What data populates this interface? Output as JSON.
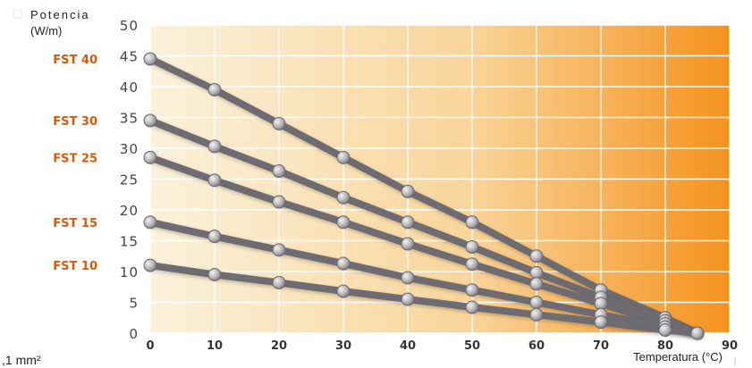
{
  "chart_data": {
    "type": "line",
    "ylabel_line1": "Potencia",
    "ylabel_line2": "(W/m)",
    "xlabel": "Temperatura (°C)",
    "footnote": ",1 mm²",
    "xlim": [
      0,
      90
    ],
    "ylim": [
      0,
      50
    ],
    "x_ticks": [
      "0",
      "10",
      "20",
      "30",
      "40",
      "50",
      "60",
      "70",
      "80",
      "90"
    ],
    "y_ticks": [
      "0",
      "5",
      "10",
      "15",
      "20",
      "25",
      "30",
      "35",
      "40",
      "45",
      "50"
    ],
    "grid": true,
    "colors": {
      "gradient_start": "#fbf2dc",
      "gradient_end": "#f5921e",
      "line": "#6e6c6f",
      "marker": "#b0aeb2",
      "label": "#d55a0c"
    },
    "series": [
      {
        "name": "FST 40",
        "x": [
          0,
          10,
          20,
          30,
          40,
          50,
          60,
          70,
          80,
          85
        ],
        "y": [
          44.5,
          39.5,
          34,
          28.5,
          23,
          18,
          12.5,
          7,
          2.5,
          0
        ]
      },
      {
        "name": "FST 30",
        "x": [
          0,
          10,
          20,
          30,
          40,
          50,
          60,
          70,
          80,
          85
        ],
        "y": [
          34.5,
          30.3,
          26.3,
          22,
          18,
          14,
          9.8,
          5.8,
          2,
          0
        ]
      },
      {
        "name": "FST 25",
        "x": [
          0,
          10,
          20,
          30,
          40,
          50,
          60,
          70,
          80,
          85
        ],
        "y": [
          28.5,
          24.8,
          21.3,
          18,
          14.5,
          11.2,
          8,
          4.8,
          1.5,
          0
        ]
      },
      {
        "name": "FST 15",
        "x": [
          0,
          10,
          20,
          30,
          40,
          50,
          60,
          70,
          80,
          85
        ],
        "y": [
          18,
          15.7,
          13.5,
          11.3,
          9,
          7,
          5,
          3,
          1,
          0
        ]
      },
      {
        "name": "FST 10",
        "x": [
          0,
          10,
          20,
          30,
          40,
          50,
          60,
          70,
          80,
          85
        ],
        "y": [
          11,
          9.5,
          8.2,
          6.8,
          5.5,
          4.2,
          3,
          1.8,
          0.5,
          0
        ]
      }
    ]
  }
}
